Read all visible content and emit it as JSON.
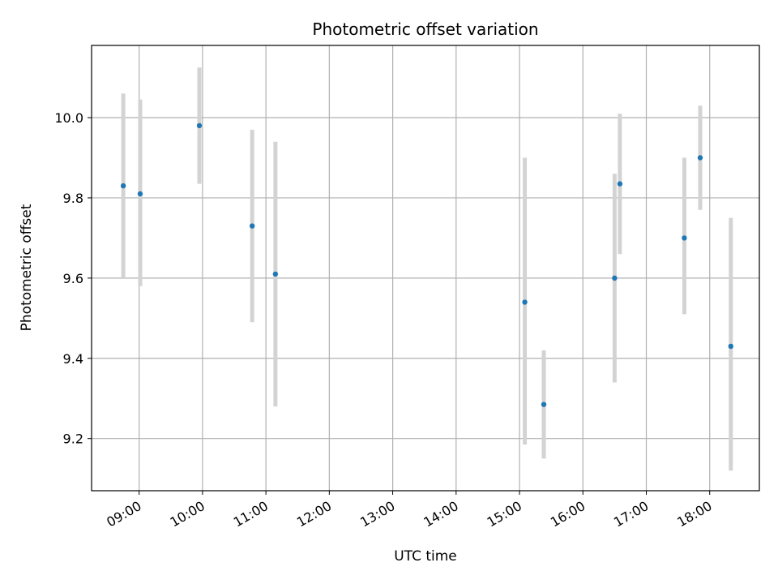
{
  "chart_data": {
    "type": "scatter",
    "title": "Photometric offset variation",
    "xlabel": "UTC time",
    "ylabel": "Photometric offset",
    "x_ticks": [
      "09:00",
      "10:00",
      "11:00",
      "12:00",
      "13:00",
      "14:00",
      "15:00",
      "16:00",
      "17:00",
      "18:00"
    ],
    "y_ticks": [
      "9.2",
      "9.4",
      "9.6",
      "9.8",
      "10.0"
    ],
    "xlim": [
      "08:15",
      "18:47"
    ],
    "ylim": [
      9.07,
      10.18
    ],
    "grid": true,
    "colors": {
      "point": "#1f77b4",
      "errorbar": "#d3d3d3",
      "grid": "#b0b0b0"
    },
    "series": [
      {
        "points": [
          {
            "x": "08:45",
            "y": 9.83,
            "ylow": 9.6,
            "yhigh": 10.06
          },
          {
            "x": "09:01",
            "y": 9.81,
            "ylow": 9.58,
            "yhigh": 10.045
          },
          {
            "x": "09:57",
            "y": 9.98,
            "ylow": 9.835,
            "yhigh": 10.125
          },
          {
            "x": "10:47",
            "y": 9.73,
            "ylow": 9.49,
            "yhigh": 9.97
          },
          {
            "x": "11:09",
            "y": 9.61,
            "ylow": 9.28,
            "yhigh": 9.94
          },
          {
            "x": "15:05",
            "y": 9.54,
            "ylow": 9.185,
            "yhigh": 9.9
          },
          {
            "x": "15:23",
            "y": 9.285,
            "ylow": 9.15,
            "yhigh": 9.42
          },
          {
            "x": "16:30",
            "y": 9.6,
            "ylow": 9.34,
            "yhigh": 9.86
          },
          {
            "x": "16:35",
            "y": 9.835,
            "ylow": 9.66,
            "yhigh": 10.01
          },
          {
            "x": "17:36",
            "y": 9.7,
            "ylow": 9.51,
            "yhigh": 9.9
          },
          {
            "x": "17:51",
            "y": 9.9,
            "ylow": 9.77,
            "yhigh": 10.03
          },
          {
            "x": "18:20",
            "y": 9.43,
            "ylow": 9.12,
            "yhigh": 9.75
          }
        ]
      }
    ]
  }
}
